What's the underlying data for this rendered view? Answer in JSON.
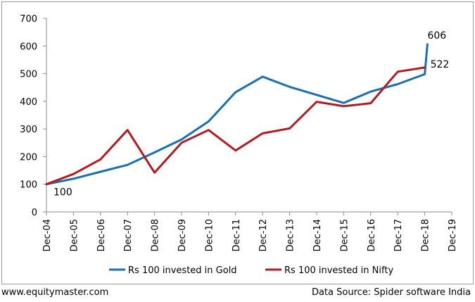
{
  "chart_data": {
    "type": "line",
    "categories": [
      "Dec-04",
      "Dec-05",
      "Dec-06",
      "Dec-07",
      "Dec-08",
      "Dec-09",
      "Dec-10",
      "Dec-11",
      "Dec-12",
      "Dec-13",
      "Dec-14",
      "Dec-15",
      "Dec-16",
      "Dec-17",
      "Dec-18",
      "Dec-19"
    ],
    "series": [
      {
        "name": "Rs 100 invested in Gold",
        "color": "#1a6fb0",
        "x": [
          0,
          1,
          2,
          3,
          4,
          5,
          6,
          7,
          8,
          9,
          10,
          11,
          12,
          13,
          14,
          14.1
        ],
        "values": [
          100,
          120,
          145,
          170,
          215,
          262,
          327,
          433,
          489,
          452,
          423,
          394,
          435,
          462,
          498,
          606
        ]
      },
      {
        "name": "Rs 100 invested in Nifty",
        "color": "#b01c22",
        "x": [
          0,
          1,
          2,
          3,
          4,
          5,
          6,
          7,
          8,
          9,
          10,
          11,
          12,
          13,
          14
        ],
        "values": [
          100,
          137,
          190,
          296,
          142,
          250,
          296,
          222,
          284,
          302,
          398,
          382,
          393,
          507,
          522
        ]
      }
    ],
    "ylim": [
      0,
      700
    ],
    "yticks": [
      0,
      100,
      200,
      300,
      400,
      500,
      600,
      700
    ],
    "annotations": [
      {
        "text": "100",
        "series": 0,
        "index": 0
      },
      {
        "text": "606",
        "series": 0,
        "index": 15
      },
      {
        "text": "522",
        "series": 1,
        "index": 14
      }
    ],
    "legend_position": "bottom"
  },
  "footer": {
    "left": "www.equitymaster.com",
    "right": "Data Source: Spider software India"
  }
}
